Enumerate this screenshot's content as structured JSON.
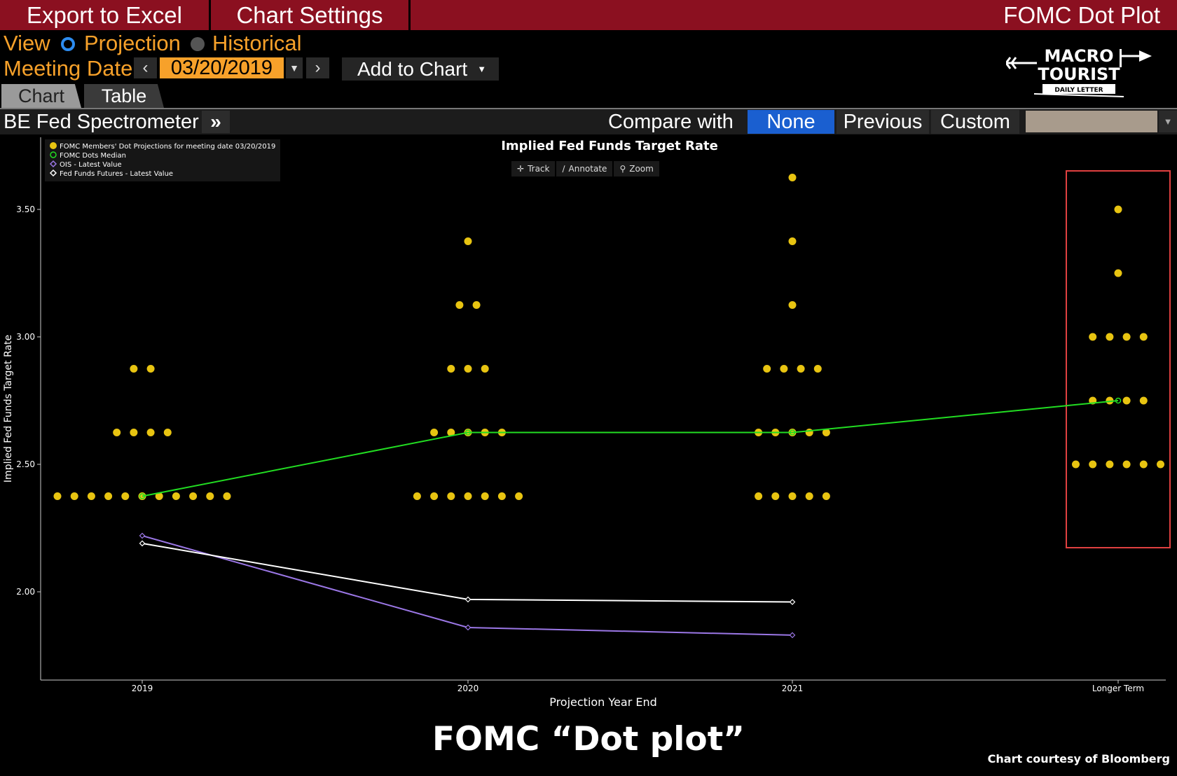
{
  "toolbar": {
    "export_label": "Export to Excel",
    "settings_label": "Chart Settings",
    "window_title": "FOMC Dot Plot"
  },
  "view": {
    "label": "View",
    "options": [
      "Projection",
      "Historical"
    ],
    "selected": "Projection"
  },
  "meeting": {
    "label": "Meeting Date",
    "date": "03/20/2019",
    "add_to_chart": "Add to Chart"
  },
  "tabs": [
    "Chart",
    "Table"
  ],
  "active_tab": "Chart",
  "subbar": {
    "spectrometer": "BE Fed Spectrometer",
    "more": "»",
    "compare_label": "Compare with",
    "compare_options": [
      "None",
      "Previous",
      "Custom"
    ],
    "compare_selected": "None"
  },
  "logo": {
    "line1": "MACRO",
    "line2": "TOURIST",
    "line3": "DAILY LETTER"
  },
  "chart_tools": [
    "Track",
    "Annotate",
    "Zoom"
  ],
  "colors": {
    "dots": "#e8c411",
    "median": "#22dd22",
    "ois": "#9b77e6",
    "futures": "#ffffff",
    "highlight_box": "#e04040",
    "topbar": "#8b1020",
    "accent": "#f7a12a"
  },
  "chart_data": {
    "type": "scatter",
    "title": "Implied Fed Funds Target Rate",
    "xlabel": "Projection Year End",
    "ylabel": "Implied Fed Funds Target Rate",
    "categories": [
      "2019",
      "2020",
      "2021",
      "Longer Term"
    ],
    "ylim": [
      1.7,
      3.8
    ],
    "yticks": [
      "2.00",
      "2.50",
      "3.00",
      "3.50"
    ],
    "legend": [
      "FOMC Members' Dot Projections for meeting date 03/20/2019",
      "FOMC Dots Median",
      "OIS - Latest Value",
      "Fed Funds Futures - Latest Value"
    ],
    "legend_position": "top-left",
    "dots": [
      {
        "category": "2019",
        "values": [
          {
            "y": 2.375,
            "n": 11
          },
          {
            "y": 2.625,
            "n": 4
          },
          {
            "y": 2.875,
            "n": 2
          }
        ]
      },
      {
        "category": "2020",
        "values": [
          {
            "y": 2.375,
            "n": 7
          },
          {
            "y": 2.625,
            "n": 5
          },
          {
            "y": 2.875,
            "n": 3
          },
          {
            "y": 3.125,
            "n": 2
          },
          {
            "y": 3.375,
            "n": 1
          }
        ]
      },
      {
        "category": "2021",
        "values": [
          {
            "y": 2.375,
            "n": 5
          },
          {
            "y": 2.625,
            "n": 5
          },
          {
            "y": 2.875,
            "n": 4
          },
          {
            "y": 3.125,
            "n": 1
          },
          {
            "y": 3.375,
            "n": 1
          },
          {
            "y": 3.625,
            "n": 1
          }
        ]
      },
      {
        "category": "Longer Term",
        "values": [
          {
            "y": 2.5,
            "n": 6
          },
          {
            "y": 2.75,
            "n": 4
          },
          {
            "y": 3.0,
            "n": 4
          },
          {
            "y": 3.25,
            "n": 1
          },
          {
            "y": 3.5,
            "n": 1
          }
        ]
      }
    ],
    "series": [
      {
        "name": "FOMC Dots Median",
        "values": [
          2.375,
          2.625,
          2.625,
          2.75
        ]
      },
      {
        "name": "OIS - Latest Value",
        "values": [
          2.22,
          1.86,
          1.83
        ]
      },
      {
        "name": "Fed Funds Futures - Latest Value",
        "values": [
          2.19,
          1.97,
          1.96
        ]
      }
    ],
    "highlight": "Longer Term"
  },
  "footer": {
    "title": "FOMC “Dot plot”",
    "credit": "Chart courtesy of Bloomberg"
  }
}
